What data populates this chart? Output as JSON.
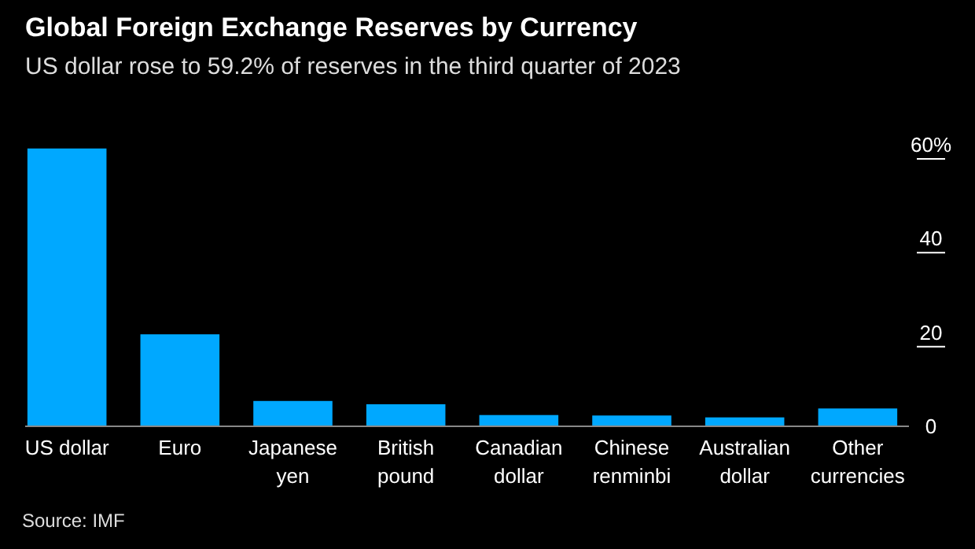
{
  "chart_data": {
    "type": "bar",
    "title": "Global Foreign Exchange Reserves by Currency",
    "subtitle": "US dollar rose to 59.2% of reserves in the third quarter of 2023",
    "categories": [
      "US dollar",
      "Euro",
      "Japanese yen",
      "British pound",
      "Canadian dollar",
      "Chinese renminbi",
      "Australian dollar",
      "Other currencies"
    ],
    "values": [
      59.2,
      19.6,
      5.4,
      4.7,
      2.4,
      2.3,
      1.9,
      3.8
    ],
    "color": "#00a8ff",
    "ylim": [
      0,
      60
    ],
    "yticks": [
      0,
      20,
      40,
      {
        "value": 60,
        "label": "60%"
      }
    ],
    "grid": false,
    "annotations": [
      "Source: IMF"
    ]
  }
}
